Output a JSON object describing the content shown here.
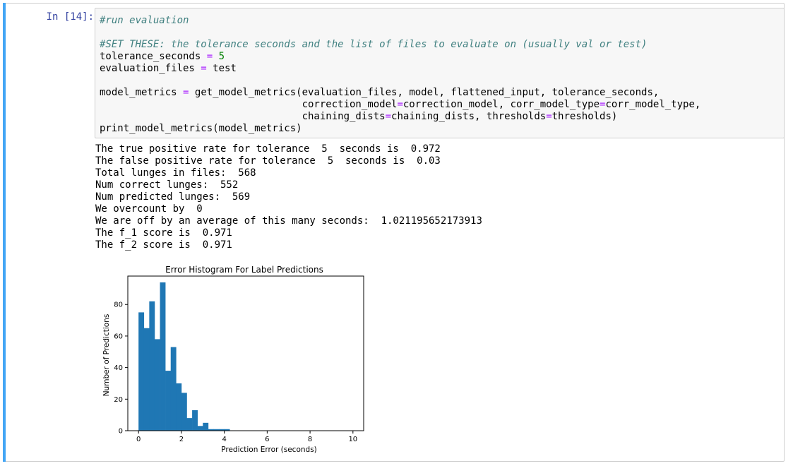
{
  "cell": {
    "prompt": "In [14]:",
    "code": {
      "l1": "#run evaluation",
      "l3": "#SET THESE: the tolerance seconds and the list of files to evaluate on (usually val or test)",
      "l4_name": "tolerance_seconds",
      "l4_op": "=",
      "l4_val": "5",
      "l5_name": "evaluation_files",
      "l5_op": "=",
      "l5_val": "test",
      "l7_a": "model_metrics",
      "l7_op": "=",
      "l7_b": "get_model_metrics(evaluation_files, model, flattened_input, tolerance_seconds,",
      "l8_a": "correction_model",
      "l8_op1": "=",
      "l8_b": "correction_model, corr_model_type",
      "l8_op2": "=",
      "l8_c": "corr_model_type,",
      "l9_a": "chaining_dists",
      "l9_op1": "=",
      "l9_b": "chaining_dists, thresholds",
      "l9_op2": "=",
      "l9_c": "thresholds)",
      "l10": "print_model_metrics(model_metrics)"
    }
  },
  "output": {
    "lines": [
      "The true positive rate for tolerance  5  seconds is  0.972",
      "The false positive rate for tolerance  5  seconds is  0.03",
      "Total lunges in files:  568",
      "Num correct lunges:  552",
      "Num predicted lunges:  569",
      "We overcount by  0",
      "We are off by an average of this many seconds:  1.021195652173913",
      "The f_1 score is  0.971",
      "The f_2 score is  0.971"
    ]
  },
  "chart_data": {
    "type": "bar",
    "title": "Error Histogram For Label Predictions",
    "xlabel": "Prediction Error (seconds)",
    "ylabel": "Number of Predictions",
    "xlim": [
      -0.5,
      10.5
    ],
    "ylim": [
      0,
      98
    ],
    "xticks": [
      0,
      2,
      4,
      6,
      8,
      10
    ],
    "yticks": [
      0,
      20,
      40,
      60,
      80
    ],
    "bin_width": 0.25,
    "bins": [
      {
        "x": 0.0,
        "value": 75
      },
      {
        "x": 0.25,
        "value": 65
      },
      {
        "x": 0.5,
        "value": 82
      },
      {
        "x": 0.75,
        "value": 58
      },
      {
        "x": 1.0,
        "value": 94
      },
      {
        "x": 1.25,
        "value": 38
      },
      {
        "x": 1.5,
        "value": 53
      },
      {
        "x": 1.75,
        "value": 30
      },
      {
        "x": 2.0,
        "value": 24
      },
      {
        "x": 2.25,
        "value": 8
      },
      {
        "x": 2.5,
        "value": 13
      },
      {
        "x": 2.75,
        "value": 3
      },
      {
        "x": 3.0,
        "value": 5
      },
      {
        "x": 3.25,
        "value": 1
      },
      {
        "x": 3.5,
        "value": 1
      },
      {
        "x": 3.75,
        "value": 1
      },
      {
        "x": 4.0,
        "value": 1
      }
    ],
    "colors": {
      "bar": "#1f77b4"
    }
  }
}
